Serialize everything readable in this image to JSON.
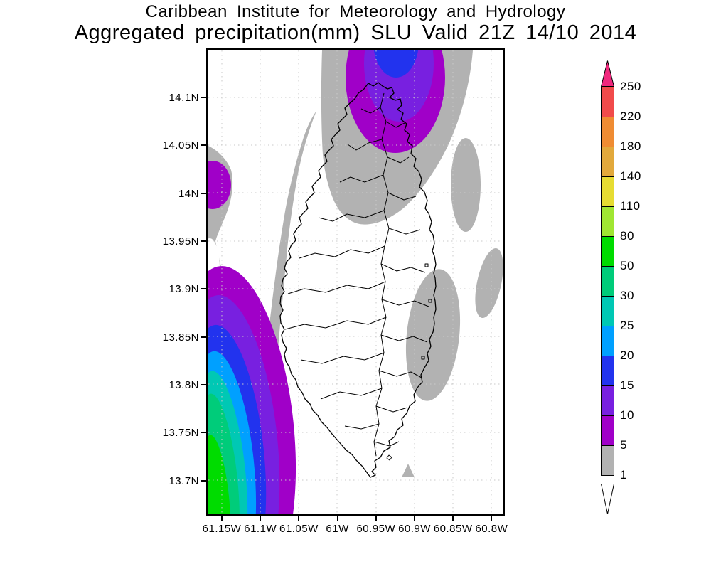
{
  "title": {
    "line1": "Caribbean Institute for Meteorology and Hydrology",
    "line2": "Aggregated precipitation(mm) SLU Valid 21Z 14/10 2014"
  },
  "map": {
    "region": "SLU (Saint Lucia)",
    "lat_ticks": [
      "14.1N",
      "14.05N",
      "14N",
      "13.95N",
      "13.9N",
      "13.85N",
      "13.8N",
      "13.75N",
      "13.7N"
    ],
    "lon_ticks": [
      "61.15W",
      "61.1W",
      "61.05W",
      "61W",
      "60.95W",
      "60.9W",
      "60.85W",
      "60.8W"
    ],
    "palette": {
      "1": "#b2b2b2",
      "5": "#a000c8",
      "10": "#7820e0",
      "15": "#2233ee",
      "20": "#00a0ff",
      "25": "#00c8b4",
      "30": "#00cc7a",
      "50": "#00dc00"
    },
    "features": [
      "offshore cell north of island, up to 15-20 mm",
      "large offshore cell southwest of island, core above 50 mm",
      "small 5-10 mm cell at west edge near 14N",
      "light 1-5 mm areas east of island and along west margin"
    ]
  },
  "colorbar": {
    "units": "mm",
    "segments": [
      {
        "top_label": "250",
        "color": "#f14b4b"
      },
      {
        "top_label": "220",
        "color": "#ef8c33"
      },
      {
        "top_label": "180",
        "color": "#e2a93c"
      },
      {
        "top_label": "140",
        "color": "#e6dc32"
      },
      {
        "top_label": "110",
        "color": "#a0e632"
      },
      {
        "top_label": "80",
        "color": "#00dc00"
      },
      {
        "top_label": "50",
        "color": "#00cc7a"
      },
      {
        "top_label": "30",
        "color": "#00c8b4"
      },
      {
        "top_label": "25",
        "color": "#00a0ff"
      },
      {
        "top_label": "20",
        "color": "#2233ee"
      },
      {
        "top_label": "15",
        "color": "#7820e0"
      },
      {
        "top_label": "10",
        "color": "#a000c8"
      },
      {
        "top_label": "5",
        "color": "#b2b2b2"
      }
    ],
    "bottom_label": "1",
    "arrow_top_color": "#f0287d",
    "arrow_bottom_color": "#ffffff"
  }
}
